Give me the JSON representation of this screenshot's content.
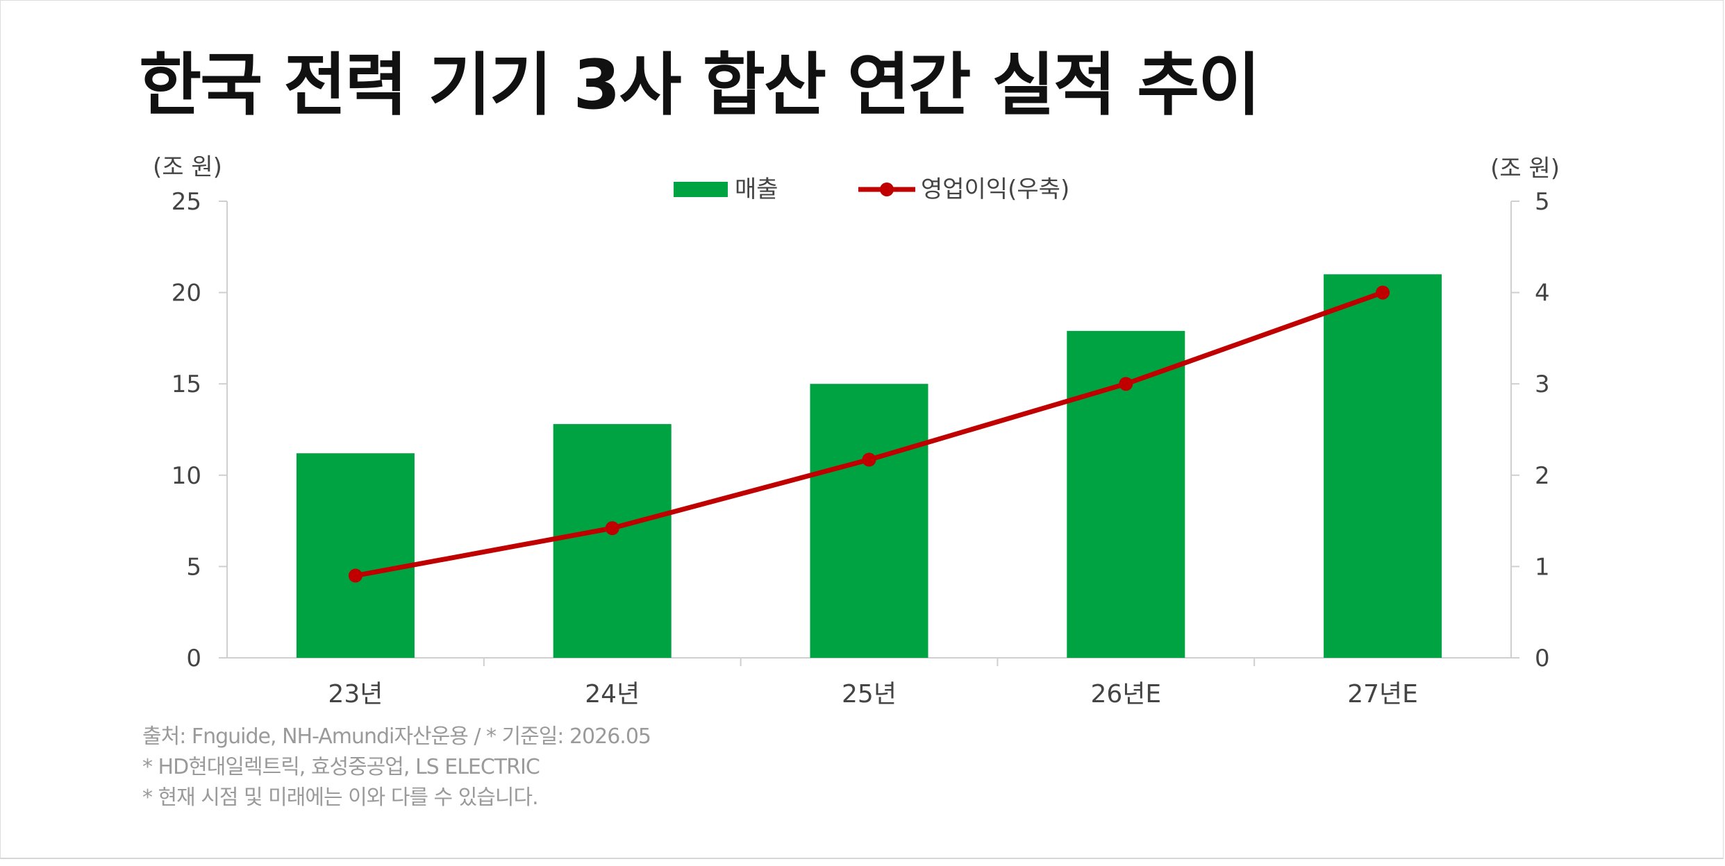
{
  "title": "한국 전력 기기 3사 합산 연간 실적 추이",
  "colors": {
    "bar": "#00a341",
    "line": "#c00000",
    "axis": "#cfcfcf",
    "tick_text": "#444444",
    "note_text": "#9a9a9a"
  },
  "chart_data": {
    "type": "bar",
    "categories": [
      "23년",
      "24년",
      "25년",
      "26년E",
      "27년E"
    ],
    "series": [
      {
        "name": "매출",
        "type": "bar",
        "axis": "left",
        "values": [
          11.2,
          12.8,
          15.0,
          17.9,
          21.0
        ]
      },
      {
        "name": "영업이익(우축)",
        "type": "line",
        "axis": "right",
        "values": [
          0.9,
          1.42,
          2.17,
          3.0,
          4.0
        ]
      }
    ],
    "y_left": {
      "unit": "(조 원)",
      "ylim": [
        0,
        25
      ],
      "ticks": [
        0,
        5,
        10,
        15,
        20,
        25
      ]
    },
    "y_right": {
      "unit": "(조 원)",
      "ylim": [
        0,
        5
      ],
      "ticks": [
        0,
        1,
        2,
        3,
        4,
        5
      ]
    },
    "grid": false,
    "legend_position": "top-center"
  },
  "notes": [
    "출처: Fnguide, NH-Amundi자산운용 / * 기준일: 2026.05",
    "* HD현대일렉트릭, 효성중공업, LS ELECTRIC",
    "* 현재 시점 및 미래에는 이와 다를 수 있습니다."
  ]
}
